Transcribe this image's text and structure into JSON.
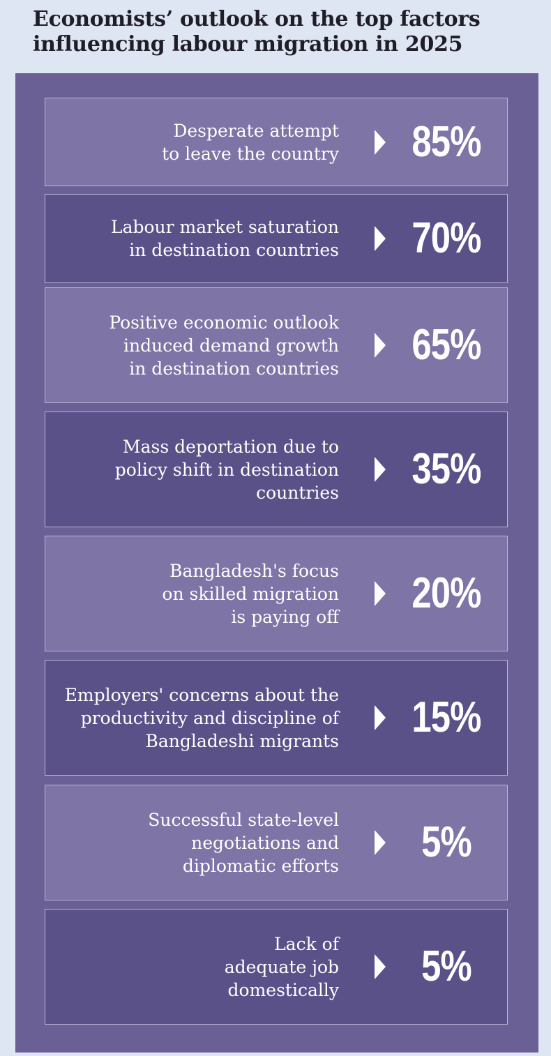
{
  "title_lines": [
    "Economists’ outlook on the top factors",
    "influencing labour migration in 2025"
  ],
  "colors": {
    "page_background": "#dfe6f3",
    "panel": "#6a6096",
    "row_light": "#7e74a6",
    "row_dark": "#5b5189",
    "text": "#ffffff",
    "title": "#1f1d28"
  },
  "icons": [
    "chevron-right-icon"
  ],
  "chart_data": {
    "type": "table",
    "title": "Economists’ outlook on the top factors influencing labour migration in 2025",
    "unit": "%",
    "rows": [
      {
        "label_lines": [
          "Desperate attempt",
          "to leave the country"
        ],
        "value": 85,
        "value_label": "85%"
      },
      {
        "label_lines": [
          "Labour market saturation",
          "in destination countries"
        ],
        "value": 70,
        "value_label": "70%"
      },
      {
        "label_lines": [
          "Positive economic outlook",
          "induced demand growth",
          "in destination countries"
        ],
        "value": 65,
        "value_label": "65%"
      },
      {
        "label_lines": [
          "Mass deportation due to",
          "policy shift in destination",
          "countries"
        ],
        "value": 35,
        "value_label": "35%"
      },
      {
        "label_lines": [
          "Bangladesh's focus",
          "on skilled migration",
          "is paying off"
        ],
        "value": 20,
        "value_label": "20%"
      },
      {
        "label_lines": [
          "Employers' concerns about the",
          "productivity and discipline of",
          "Bangladeshi migrants"
        ],
        "value": 15,
        "value_label": "15%"
      },
      {
        "label_lines": [
          "Successful state-level",
          "negotiations and",
          "diplomatic efforts"
        ],
        "value": 5,
        "value_label": "5%"
      },
      {
        "label_lines": [
          "Lack of",
          "adequate job",
          "domestically"
        ],
        "value": 5,
        "value_label": "5%"
      }
    ]
  }
}
